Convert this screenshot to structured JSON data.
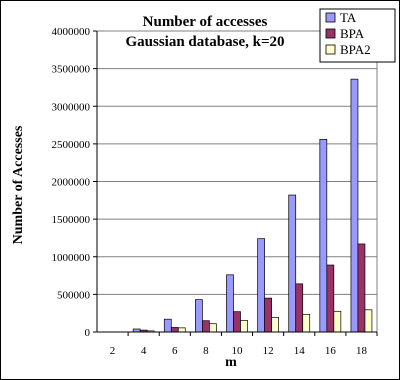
{
  "chart_data": {
    "type": "bar",
    "title": "Number of accesses",
    "subtitle": "Gaussian database, k=20",
    "xlabel": "m",
    "ylabel": "Number of Accesses",
    "categories": [
      "2",
      "4",
      "6",
      "8",
      "10",
      "12",
      "14",
      "16",
      "18"
    ],
    "series": [
      {
        "name": "TA",
        "color": "#9999ff",
        "values": [
          0,
          40000,
          170000,
          430000,
          760000,
          1240000,
          1820000,
          2560000,
          3360000
        ]
      },
      {
        "name": "BPA",
        "color": "#993366",
        "values": [
          0,
          25000,
          60000,
          150000,
          270000,
          450000,
          640000,
          890000,
          1170000
        ]
      },
      {
        "name": "BPA2",
        "color": "#ffffcc",
        "values": [
          0,
          15000,
          55000,
          110000,
          155000,
          195000,
          235000,
          275000,
          295000
        ]
      }
    ],
    "ylim": [
      0,
      4000000
    ],
    "yticks": [
      "0",
      "500000",
      "1000000",
      "1500000",
      "2000000",
      "2500000",
      "3000000",
      "3500000",
      "4000000"
    ],
    "grid": true,
    "legend_position": "top-right"
  }
}
